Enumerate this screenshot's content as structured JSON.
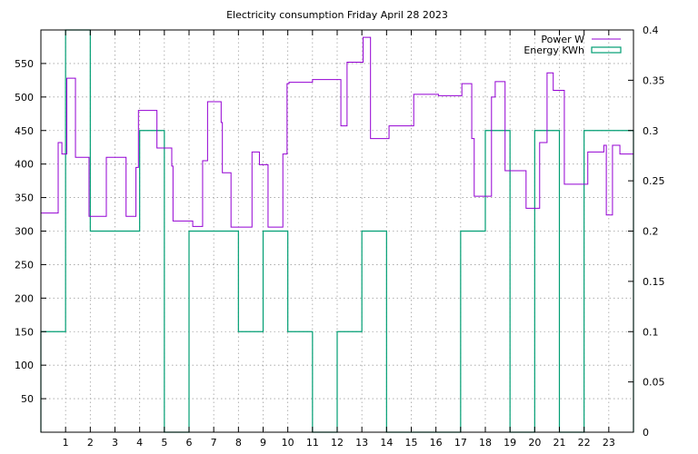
{
  "chart_data": {
    "type": "line",
    "title": "Electricity consumption Friday April 28 2023",
    "xlabel": "",
    "ylabel": "",
    "y2label": "",
    "xlim": [
      0,
      24
    ],
    "ylim": [
      0,
      600
    ],
    "y2lim": [
      0,
      0.4
    ],
    "grid": true,
    "legend_position": "top-right",
    "x_ticks": [
      1,
      2,
      3,
      4,
      5,
      6,
      7,
      8,
      9,
      10,
      11,
      12,
      13,
      14,
      15,
      16,
      17,
      18,
      19,
      20,
      21,
      22,
      23
    ],
    "y_ticks": [
      50,
      100,
      150,
      200,
      250,
      300,
      350,
      400,
      450,
      500,
      550
    ],
    "y2_ticks": [
      0,
      0.05,
      0.1,
      0.15,
      0.2,
      0.25,
      0.3,
      0.35,
      0.4
    ],
    "y2_tick_labels": [
      "0",
      "0.05",
      "0.1",
      "0.15",
      "0.2",
      "0.25",
      "0.3",
      "0.35",
      "0.4"
    ],
    "series": [
      {
        "name": "Power W",
        "axis": "y",
        "style": "steps",
        "color": "#9400d3",
        "points": [
          [
            0.0,
            327
          ],
          [
            0.7,
            327
          ],
          [
            0.7,
            432
          ],
          [
            0.85,
            432
          ],
          [
            0.85,
            415
          ],
          [
            1.05,
            415
          ],
          [
            1.05,
            528
          ],
          [
            1.4,
            528
          ],
          [
            1.4,
            410
          ],
          [
            1.95,
            410
          ],
          [
            1.95,
            322
          ],
          [
            2.65,
            322
          ],
          [
            2.65,
            410
          ],
          [
            3.45,
            410
          ],
          [
            3.45,
            322
          ],
          [
            3.85,
            322
          ],
          [
            3.85,
            395
          ],
          [
            3.95,
            395
          ],
          [
            3.95,
            480
          ],
          [
            4.7,
            480
          ],
          [
            4.7,
            424
          ],
          [
            5.3,
            424
          ],
          [
            5.3,
            397
          ],
          [
            5.35,
            397
          ],
          [
            5.35,
            315
          ],
          [
            6.15,
            315
          ],
          [
            6.15,
            307
          ],
          [
            6.55,
            307
          ],
          [
            6.55,
            405
          ],
          [
            6.75,
            405
          ],
          [
            6.75,
            493
          ],
          [
            7.3,
            493
          ],
          [
            7.3,
            462
          ],
          [
            7.35,
            462
          ],
          [
            7.35,
            387
          ],
          [
            7.7,
            387
          ],
          [
            7.7,
            306
          ],
          [
            8.55,
            306
          ],
          [
            8.55,
            418
          ],
          [
            8.85,
            418
          ],
          [
            8.85,
            399
          ],
          [
            9.2,
            399
          ],
          [
            9.2,
            306
          ],
          [
            9.8,
            306
          ],
          [
            9.8,
            415
          ],
          [
            9.97,
            415
          ],
          [
            9.97,
            520
          ],
          [
            10.05,
            520
          ],
          [
            10.05,
            522
          ],
          [
            11.0,
            522
          ],
          [
            11.0,
            526
          ],
          [
            12.15,
            526
          ],
          [
            12.15,
            457
          ],
          [
            12.4,
            457
          ],
          [
            12.4,
            552
          ],
          [
            13.05,
            552
          ],
          [
            13.05,
            589
          ],
          [
            13.35,
            589
          ],
          [
            13.35,
            438
          ],
          [
            14.1,
            438
          ],
          [
            14.1,
            457
          ],
          [
            15.1,
            457
          ],
          [
            15.1,
            504
          ],
          [
            16.1,
            504
          ],
          [
            16.1,
            502
          ],
          [
            17.05,
            502
          ],
          [
            17.05,
            520
          ],
          [
            17.45,
            520
          ],
          [
            17.45,
            438
          ],
          [
            17.55,
            438
          ],
          [
            17.55,
            352
          ],
          [
            18.25,
            352
          ],
          [
            18.25,
            500
          ],
          [
            18.4,
            500
          ],
          [
            18.4,
            523
          ],
          [
            18.8,
            523
          ],
          [
            18.8,
            390
          ],
          [
            19.65,
            390
          ],
          [
            19.65,
            334
          ],
          [
            20.2,
            334
          ],
          [
            20.2,
            432
          ],
          [
            20.5,
            432
          ],
          [
            20.5,
            536
          ],
          [
            20.75,
            536
          ],
          [
            20.75,
            510
          ],
          [
            21.2,
            510
          ],
          [
            21.2,
            370
          ],
          [
            22.15,
            370
          ],
          [
            22.15,
            418
          ],
          [
            22.8,
            418
          ],
          [
            22.8,
            428
          ],
          [
            22.9,
            428
          ],
          [
            22.9,
            324
          ],
          [
            23.15,
            324
          ],
          [
            23.15,
            428
          ],
          [
            23.45,
            428
          ],
          [
            23.45,
            415
          ],
          [
            24.0,
            415
          ]
        ]
      },
      {
        "name": "Energy KWh",
        "axis": "y2",
        "style": "histeps",
        "color": "#009e73",
        "values": [
          0.1,
          0.4,
          0.2,
          0.2,
          0.3,
          0,
          0.2,
          0.2,
          0.1,
          0.2,
          0.1,
          0,
          0.1,
          0.2,
          0,
          0,
          0,
          0.2,
          0.3,
          0,
          0.3,
          0,
          0.3,
          0.3
        ]
      }
    ]
  }
}
